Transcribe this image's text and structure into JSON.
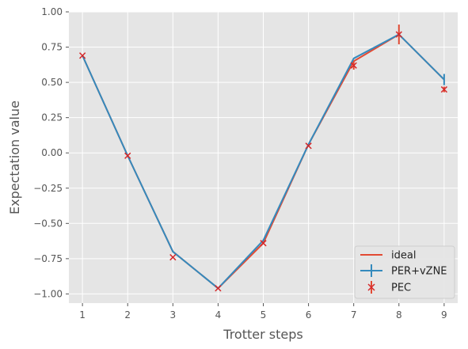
{
  "chart_data": {
    "type": "line",
    "xlabel": "Trotter steps",
    "ylabel": "Expectation value",
    "xlim": [
      0.7,
      9.3
    ],
    "ylim": [
      -1.065,
      1.0
    ],
    "xticks": [
      1,
      2,
      3,
      4,
      5,
      6,
      7,
      8,
      9
    ],
    "yticks": [
      -1.0,
      -0.75,
      -0.5,
      -0.25,
      0.0,
      0.25,
      0.5,
      0.75,
      1.0
    ],
    "xtick_labels": [
      "1",
      "2",
      "3",
      "4",
      "5",
      "6",
      "7",
      "8",
      "9"
    ],
    "ytick_labels": [
      "−1.00",
      "−0.75",
      "−0.50",
      "−0.25",
      "0.00",
      "0.25",
      "0.50",
      "0.75",
      "1.00"
    ],
    "grid": true,
    "legend_position": "lower-right",
    "background": "#e5e5e5",
    "x": [
      1,
      2,
      3,
      4,
      5,
      6,
      7,
      8,
      9
    ],
    "series": [
      {
        "name": "ideal",
        "style": "line",
        "color": "#e24a33",
        "values": [
          0.69,
          -0.02,
          -0.7,
          -0.96,
          -0.64,
          0.06,
          0.65,
          0.84,
          0.52
        ]
      },
      {
        "name": "PER+vZNE",
        "style": "line+errorbar",
        "color": "#348abd",
        "values": [
          0.69,
          -0.02,
          -0.7,
          -0.96,
          -0.62,
          0.06,
          0.67,
          0.84,
          0.52
        ],
        "errors": [
          0.0,
          0.0,
          0.0,
          0.0,
          0.0,
          0.0,
          0.0,
          0.0,
          0.04
        ]
      },
      {
        "name": "PEC",
        "style": "x-marker+errorbar",
        "color": "#e24a33",
        "marker_color": "#d62728",
        "values": [
          0.69,
          -0.02,
          -0.74,
          -0.96,
          -0.64,
          0.05,
          0.62,
          0.84,
          0.45
        ],
        "errors": [
          0.0,
          0.0,
          0.0,
          0.0,
          0.0,
          0.0,
          0.03,
          0.07,
          0.02
        ]
      }
    ]
  }
}
